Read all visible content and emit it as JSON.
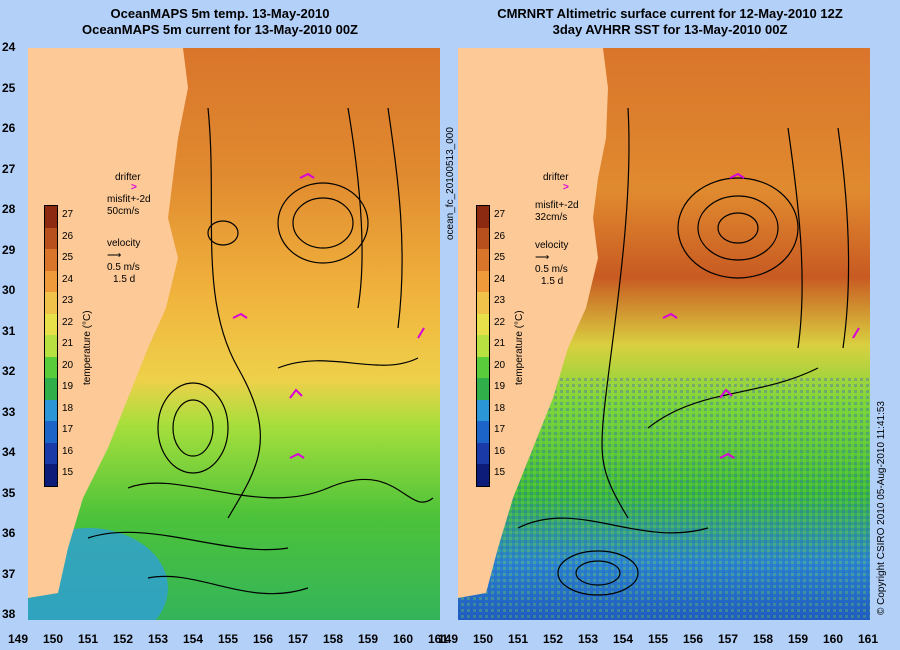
{
  "left_panel": {
    "title_line1": "OceanMAPS 5m temp. 13-May-2010",
    "title_line2": "OceanMAPS 5m current for 13-May-2010 00Z",
    "legend": {
      "drifter": "drifter",
      "misfit": "misfit+-2d",
      "speed": "50cm/s",
      "velocity": "velocity",
      "vel_scale": "0.5 m/s",
      "vel_time": "1.5 d"
    },
    "colorbar_title": "temperature (°C)"
  },
  "right_panel": {
    "title_line1": "CMRNRT Altimetric surface current for 12-May-2010 12Z",
    "title_line2": "3day AVHRR SST for 13-May-2010 00Z",
    "legend": {
      "drifter": "drifter",
      "misfit": "misfit+-2d",
      "speed": "32cm/s",
      "velocity": "velocity",
      "vel_scale": "0.5 m/s",
      "vel_time": "1.5 d"
    },
    "colorbar_title": "temperature (°C)"
  },
  "side_label": "ocean_fc_20100513_000",
  "copyright": "© Copyright CSIRO 2010    05-Aug-2010 11:41:53",
  "lat_ticks": [
    "24",
    "25",
    "26",
    "27",
    "28",
    "29",
    "30",
    "31",
    "32",
    "33",
    "34",
    "35",
    "36",
    "37",
    "38"
  ],
  "lon_ticks": [
    "149",
    "150",
    "151",
    "152",
    "153",
    "154",
    "155",
    "156",
    "157",
    "158",
    "159",
    "160",
    "161"
  ],
  "colorbar_ticks": [
    "27",
    "26",
    "25",
    "24",
    "23",
    "22",
    "21",
    "20",
    "19",
    "18",
    "17",
    "16",
    "15"
  ],
  "colorbar_colors": [
    "#8b2a10",
    "#b8501e",
    "#d9752b",
    "#ee9a3a",
    "#f1c24a",
    "#e8e04a",
    "#b8e040",
    "#58cc3a",
    "#2fae4a",
    "#2a96d8",
    "#1d64c8",
    "#1a3aa8",
    "#0d1c78"
  ]
}
